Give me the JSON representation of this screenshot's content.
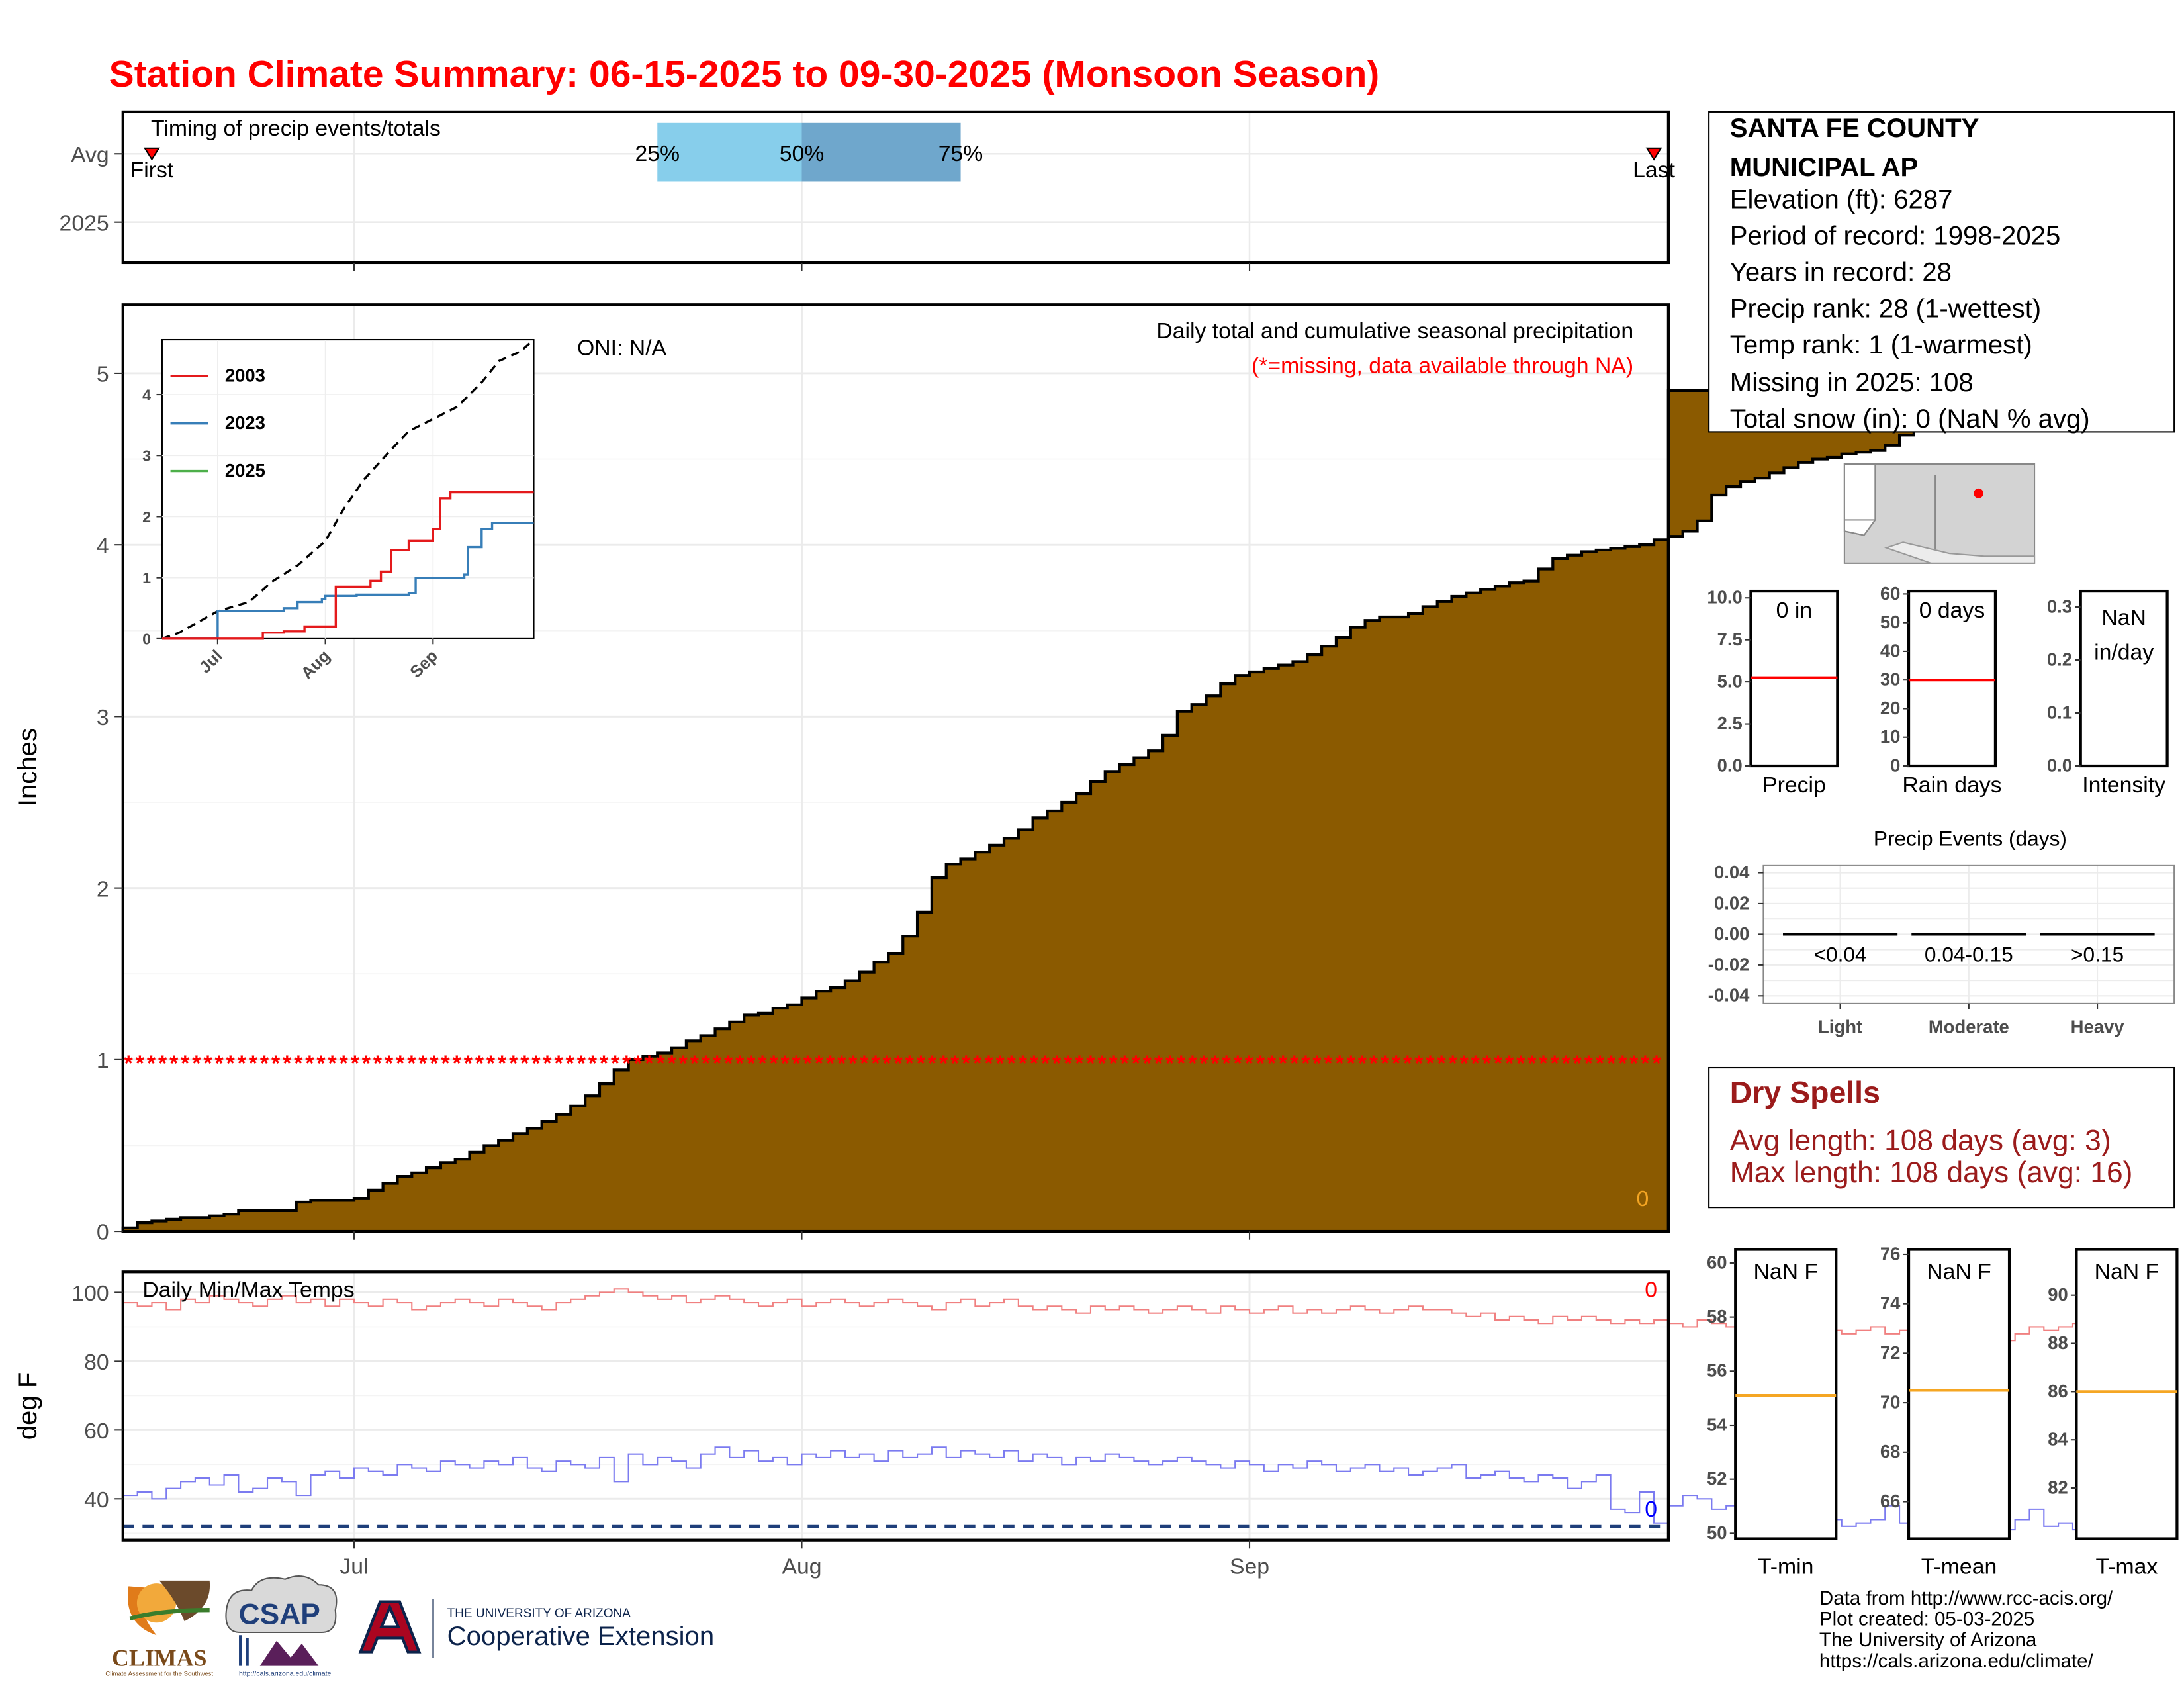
{
  "title": "Station Climate Summary: 06-15-2025 to 09-30-2025 (Monsoon Season)",
  "colors": {
    "title": "#ff0000",
    "precip_fill": "#8b5a00",
    "q_light": "#87ceeb",
    "q_dark": "#6fa7cc",
    "red": "#e41a1c",
    "blue": "#377eb8",
    "green": "#4daf4a",
    "dry_text": "#9b1b1b",
    "avg_line": "#f5a623",
    "tmax_line": "#f08080",
    "tmin_line": "#7b7bf0"
  },
  "timing_panel": {
    "label": "Timing of precip events/totals",
    "rows": [
      "Avg",
      "2025"
    ],
    "first_label": "First",
    "last_label": "Last",
    "q25_label": "25%",
    "q50_label": "50%",
    "q75_label": "75%",
    "first_date": "2025-06-17",
    "q25_date": "2025-07-22",
    "q50_date": "2025-08-01",
    "q75_date": "2025-08-12",
    "last_date": "2025-09-29"
  },
  "x_axis": {
    "start": "2025-06-15",
    "end": "2025-09-30",
    "ticks": [
      {
        "label": "Jul",
        "date": "2025-07-01"
      },
      {
        "label": "Aug",
        "date": "2025-08-01"
      },
      {
        "label": "Sep",
        "date": "2025-09-01"
      }
    ]
  },
  "precip_panel": {
    "ylabel": "Inches",
    "subtitle": "Daily total and cumulative seasonal precipitation",
    "missing_note": "(*=missing, data available through NA)",
    "oni_label": "ONI: N/A",
    "corner_value": "0",
    "missing_marker_value": 1.0,
    "ylim": [
      0,
      5.4
    ],
    "yticks": [
      "0",
      "1",
      "2",
      "3",
      "4",
      "5"
    ]
  },
  "inset": {
    "legend": [
      "2003",
      "2023",
      "2025"
    ],
    "ylim": [
      0,
      4.9
    ],
    "yticks": [
      "0",
      "1",
      "2",
      "3",
      "4"
    ],
    "xticks": [
      "Jul",
      "Aug",
      "Sep"
    ]
  },
  "temp_panel": {
    "title": "Daily Min/Max Temps",
    "ylabel": "deg F",
    "ylim": [
      28,
      106
    ],
    "yticks": [
      "40",
      "60",
      "80",
      "100"
    ],
    "freeze_line": 32,
    "max_count_label": "0",
    "min_count_label": "0"
  },
  "station_info": {
    "name_line1": "SANTA FE COUNTY",
    "name_line2": "MUNICIPAL AP",
    "lines": [
      "Elevation (ft): 6287",
      "Period of record: 1998-2025",
      "Years in record: 28",
      "Precip rank: 28 (1-wettest)",
      "Temp rank: 1 (1-warmest)",
      "Missing in 2025: 108",
      "Total snow (in): 0 (NaN % avg)"
    ]
  },
  "summary_bars": [
    {
      "label": "Precip",
      "value_text": "0 in",
      "yticks": [
        "0.0",
        "2.5",
        "5.0",
        "7.5",
        "10.0"
      ],
      "ymax": 10.4,
      "avg": 5.25
    },
    {
      "label": "Rain days",
      "value_text": "0 days",
      "yticks": [
        "0",
        "10",
        "20",
        "30",
        "40",
        "50",
        "60"
      ],
      "ymax": 61,
      "avg": 30
    },
    {
      "label": "Intensity",
      "value_text_1": "NaN",
      "value_text_2": "in/day",
      "yticks": [
        "0.0",
        "0.1",
        "0.2",
        "0.3"
      ],
      "ymax": 0.33
    }
  ],
  "precip_events": {
    "title": "Precip Events (days)",
    "categories": [
      "Light",
      "Moderate",
      "Heavy"
    ],
    "ranges": [
      "<0.04",
      "0.04-0.15",
      ">0.15"
    ],
    "values": [
      0,
      0,
      0
    ],
    "yticks": [
      "-0.04",
      "-0.02",
      "0.00",
      "0.02",
      "0.04"
    ]
  },
  "dry_spells": {
    "title": "Dry Spells",
    "avg_line": "Avg length: 108 days (avg: 3)",
    "max_line": "Max length: 108 days (avg: 16)"
  },
  "temp_summary": [
    {
      "label": "T-min",
      "value_text": "NaN F",
      "yticks": [
        "50",
        "52",
        "54",
        "56",
        "58",
        "60"
      ],
      "ylim": [
        49.8,
        60.5
      ],
      "avg": 55.1
    },
    {
      "label": "T-mean",
      "value_text": "NaN F",
      "yticks": [
        "66",
        "68",
        "70",
        "72",
        "74",
        "76"
      ],
      "ylim": [
        64.5,
        76.2
      ],
      "avg": 70.5
    },
    {
      "label": "T-max",
      "value_text": "NaN F",
      "yticks": [
        "82",
        "84",
        "86",
        "88",
        "90"
      ],
      "ylim": [
        79.9,
        91.9
      ],
      "avg": 86.0
    }
  ],
  "footer": {
    "lines": [
      "Data from http://www.rcc-acis.org/",
      "Plot created: 05-03-2025",
      "The University of Arizona",
      "https://cals.arizona.edu/climate/"
    ]
  },
  "logos": {
    "climas": "CLIMAS",
    "climas_sub": "Climate Assessment for the Southwest",
    "csap": "CSAP",
    "csap_url": "http://cals.arizona.edu/climate",
    "ua_line1": "THE UNIVERSITY OF ARIZONA",
    "ua_line2": "Cooperative Extension"
  },
  "chart_data": [
    {
      "type": "area",
      "title": "Daily total and cumulative seasonal precipitation",
      "ylabel": "Inches",
      "ylim": [
        0,
        5.4
      ],
      "x_start": "2025-06-15",
      "x_end": "2025-09-30",
      "cumulative_precip": [
        0.02,
        0.05,
        0.06,
        0.07,
        0.08,
        0.08,
        0.09,
        0.1,
        0.12,
        0.12,
        0.12,
        0.12,
        0.17,
        0.18,
        0.18,
        0.18,
        0.19,
        0.24,
        0.28,
        0.32,
        0.34,
        0.37,
        0.4,
        0.42,
        0.46,
        0.5,
        0.53,
        0.57,
        0.6,
        0.64,
        0.68,
        0.73,
        0.79,
        0.86,
        0.94,
        1.0,
        1.02,
        1.04,
        1.07,
        1.11,
        1.14,
        1.18,
        1.22,
        1.26,
        1.27,
        1.3,
        1.32,
        1.36,
        1.4,
        1.42,
        1.46,
        1.51,
        1.57,
        1.62,
        1.72,
        1.86,
        2.06,
        2.14,
        2.17,
        2.21,
        2.25,
        2.29,
        2.34,
        2.41,
        2.45,
        2.5,
        2.55,
        2.62,
        2.68,
        2.72,
        2.76,
        2.8,
        2.89,
        3.03,
        3.07,
        3.12,
        3.19,
        3.24,
        3.26,
        3.28,
        3.3,
        3.32,
        3.36,
        3.41,
        3.46,
        3.52,
        3.56,
        3.58,
        3.58,
        3.6,
        3.64,
        3.67,
        3.7,
        3.72,
        3.74,
        3.76,
        3.78,
        3.79,
        3.86,
        3.92,
        3.94,
        3.96,
        3.97,
        3.98,
        3.99,
        4.0,
        4.03,
        4.05,
        4.08,
        4.14,
        4.29,
        4.34,
        4.37,
        4.39,
        4.42,
        4.45,
        4.48,
        4.5,
        4.51,
        4.53,
        4.54,
        4.55,
        4.58,
        4.64,
        4.7,
        4.73,
        4.73,
        4.73,
        4.73,
        4.73,
        4.75,
        4.78,
        4.82,
        4.86,
        4.9
      ]
    },
    {
      "type": "line",
      "title": "",
      "ylim": [
        0,
        4.9
      ],
      "x_start": "2025-06-15",
      "x_end": "2025-09-30",
      "series": [
        {
          "name": "2003",
          "points": [
            [
              "2025-06-15",
              0.0
            ],
            [
              "2025-07-10",
              0.0
            ],
            [
              "2025-07-14",
              0.1
            ],
            [
              "2025-07-20",
              0.12
            ],
            [
              "2025-07-26",
              0.2
            ],
            [
              "2025-08-04",
              0.85
            ],
            [
              "2025-08-14",
              0.95
            ],
            [
              "2025-08-17",
              1.1
            ],
            [
              "2025-08-20",
              1.45
            ],
            [
              "2025-08-25",
              1.6
            ],
            [
              "2025-09-01",
              1.8
            ],
            [
              "2025-09-03",
              2.3
            ],
            [
              "2025-09-06",
              2.4
            ],
            [
              "2025-09-30",
              2.4
            ]
          ]
        },
        {
          "name": "2023",
          "points": [
            [
              "2025-06-15",
              0.0
            ],
            [
              "2025-06-30",
              0.0
            ],
            [
              "2025-07-01",
              0.45
            ],
            [
              "2025-07-20",
              0.5
            ],
            [
              "2025-07-24",
              0.6
            ],
            [
              "2025-07-31",
              0.65
            ],
            [
              "2025-08-01",
              0.7
            ],
            [
              "2025-08-10",
              0.72
            ],
            [
              "2025-08-25",
              0.75
            ],
            [
              "2025-08-27",
              1.0
            ],
            [
              "2025-09-10",
              1.05
            ],
            [
              "2025-09-11",
              1.5
            ],
            [
              "2025-09-15",
              1.8
            ],
            [
              "2025-09-18",
              1.9
            ],
            [
              "2025-09-30",
              1.9
            ]
          ]
        },
        {
          "name": "2025",
          "points": []
        },
        {
          "name": "",
          "dashed": true,
          "points": [
            [
              "2025-06-15",
              0.0
            ],
            [
              "2025-06-20",
              0.1
            ],
            [
              "2025-07-01",
              0.45
            ],
            [
              "2025-07-10",
              0.6
            ],
            [
              "2025-07-17",
              0.95
            ],
            [
              "2025-07-24",
              1.2
            ],
            [
              "2025-08-01",
              1.6
            ],
            [
              "2025-08-06",
              2.1
            ],
            [
              "2025-08-12",
              2.6
            ],
            [
              "2025-08-20",
              3.1
            ],
            [
              "2025-08-25",
              3.4
            ],
            [
              "2025-09-01",
              3.6
            ],
            [
              "2025-09-08",
              3.8
            ],
            [
              "2025-09-15",
              4.2
            ],
            [
              "2025-09-20",
              4.55
            ],
            [
              "2025-09-26",
              4.7
            ],
            [
              "2025-09-30",
              4.9
            ]
          ]
        }
      ]
    },
    {
      "type": "line",
      "title": "Daily Min/Max Temps",
      "ylabel": "deg F",
      "ylim": [
        28,
        106
      ],
      "x_start": "2025-06-15",
      "x_end": "2025-09-30",
      "series": [
        {
          "name": "",
          "values": [
            97,
            96,
            97,
            95,
            98,
            97,
            99,
            98,
            97,
            96,
            98,
            99,
            97,
            98,
            96,
            98,
            97,
            96,
            98,
            97,
            95,
            96,
            97,
            98,
            97,
            96,
            98,
            97,
            96,
            95,
            97,
            98,
            99,
            100,
            101,
            100,
            99,
            98,
            99,
            97,
            98,
            99,
            98,
            97,
            96,
            97,
            98,
            96,
            97,
            98,
            97,
            96,
            97,
            98,
            97,
            96,
            95,
            97,
            98,
            96,
            97,
            98,
            96,
            95,
            96,
            95,
            94,
            96,
            95,
            96,
            95,
            94,
            95,
            96,
            95,
            94,
            96,
            95,
            94,
            95,
            96,
            94,
            95,
            94,
            95,
            96,
            95,
            94,
            95,
            96,
            95,
            95,
            94,
            93,
            94,
            92,
            93,
            92,
            91,
            93,
            92,
            93,
            92,
            91,
            92,
            91,
            92,
            91,
            90,
            92,
            91,
            90,
            89,
            90,
            91,
            90,
            89,
            90,
            89,
            88,
            89,
            90,
            88,
            89,
            88,
            87,
            86,
            85,
            86,
            84,
            86,
            88,
            90,
            89,
            90,
            91,
            89,
            90
          ]
        },
        {
          "name": "",
          "values": [
            41,
            42,
            40,
            43,
            45,
            46,
            44,
            47,
            42,
            43,
            46,
            45,
            41,
            47,
            48,
            46,
            49,
            48,
            47,
            50,
            49,
            48,
            51,
            50,
            49,
            51,
            50,
            52,
            49,
            48,
            51,
            50,
            49,
            52,
            45,
            53,
            50,
            52,
            51,
            49,
            53,
            55,
            52,
            54,
            51,
            52,
            50,
            53,
            52,
            54,
            52,
            53,
            51,
            54,
            52,
            53,
            55,
            52,
            54,
            53,
            52,
            54,
            51,
            53,
            52,
            50,
            52,
            51,
            53,
            52,
            51,
            50,
            51,
            52,
            51,
            50,
            49,
            51,
            50,
            48,
            50,
            49,
            51,
            50,
            48,
            49,
            50,
            48,
            49,
            47,
            48,
            49,
            50,
            46,
            47,
            48,
            46,
            45,
            47,
            46,
            43,
            45,
            47,
            37,
            36,
            42,
            33,
            38,
            41,
            40,
            37,
            38,
            35,
            39,
            37,
            35,
            36,
            35,
            34,
            32,
            33,
            34,
            38,
            33,
            34,
            31,
            35,
            36,
            35,
            33,
            31,
            34,
            37,
            32,
            33,
            31,
            36,
            33
          ]
        }
      ]
    },
    {
      "type": "bar",
      "title": "Precip Events (days)",
      "categories": [
        "Light",
        "Moderate",
        "Heavy"
      ],
      "values": [
        0,
        0,
        0
      ],
      "ylim": [
        -0.045,
        0.045
      ]
    }
  ]
}
